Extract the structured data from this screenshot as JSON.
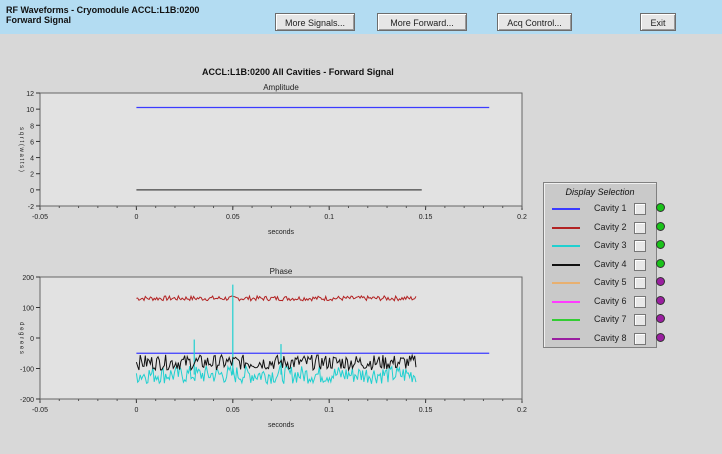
{
  "window": {
    "title_line1": "RF Waveforms - Cryomodule ACCL:L1B:0200",
    "title_line2": "Forward Signal"
  },
  "toolbar": {
    "more_signals": "More Signals...",
    "more_forward": "More Forward...",
    "acq_control": "Acq Control...",
    "exit": "Exit"
  },
  "main_title": "ACCL:L1B:0200 All Cavities - Forward Signal",
  "display_selection": {
    "title": "Display Selection",
    "items": [
      {
        "label": "Cavity 1",
        "color": "#3b3bff",
        "led": "#19c219"
      },
      {
        "label": "Cavity 2",
        "color": "#b22222",
        "led": "#19c219"
      },
      {
        "label": "Cavity 3",
        "color": "#20d0d0",
        "led": "#19c219"
      },
      {
        "label": "Cavity 4",
        "color": "#111111",
        "led": "#19c219"
      },
      {
        "label": "Cavity 5",
        "color": "#e8b070",
        "led": "#9a1fa0"
      },
      {
        "label": "Cavity 6",
        "color": "#ff3cff",
        "led": "#9a1fa0"
      },
      {
        "label": "Cavity 7",
        "color": "#33cc33",
        "led": "#9a1fa0"
      },
      {
        "label": "Cavity 8",
        "color": "#9a1fa0",
        "led": "#9a1fa0"
      }
    ]
  },
  "chart_data": [
    {
      "type": "line",
      "title": "Amplitude",
      "xlabel": "seconds",
      "ylabel": "s q r t ( w a t t s )",
      "xlim": [
        -0.05,
        0.2
      ],
      "ylim": [
        -2,
        12
      ],
      "xticks": [
        "-0.05",
        "0",
        "0.05",
        "0.1",
        "0.15",
        "0.2"
      ],
      "yticks": [
        "-2",
        "0",
        "2",
        "4",
        "6",
        "8",
        "10",
        "12"
      ],
      "series": [
        {
          "name": "Cavity 1",
          "color": "#3b3bff",
          "x": [
            0,
            0.183
          ],
          "y": [
            10.2,
            10.2
          ]
        },
        {
          "name": "Cavity 4",
          "color": "#444444",
          "x": [
            0,
            0.148
          ],
          "y": [
            0,
            0
          ]
        }
      ]
    },
    {
      "type": "line",
      "title": "Phase",
      "xlabel": "seconds",
      "ylabel": "d e g r e e s",
      "xlim": [
        -0.05,
        0.2
      ],
      "ylim": [
        -200,
        200
      ],
      "xticks": [
        "-0.05",
        "0",
        "0.05",
        "0.1",
        "0.15",
        "0.2"
      ],
      "yticks": [
        "-200",
        "-100",
        "0",
        "100",
        "200"
      ],
      "series": [
        {
          "name": "Cavity 1",
          "color": "#3b3bff",
          "x": [
            0,
            0.183
          ],
          "y": [
            -50,
            -50
          ]
        },
        {
          "name": "Cavity 2",
          "color": "#b22222",
          "x_range": [
            0,
            0.145
          ],
          "center": 130,
          "spread": 8
        },
        {
          "name": "Cavity 3",
          "color": "#20d0d0",
          "x_range": [
            0,
            0.145
          ],
          "center": -120,
          "spread": 30,
          "spikes": [
            [
              0.05,
              175
            ],
            [
              0.03,
              -5
            ],
            [
              0.075,
              -20
            ]
          ]
        },
        {
          "name": "Cavity 4",
          "color": "#111111",
          "x_range": [
            0,
            0.145
          ],
          "center": -80,
          "spread": 25
        }
      ]
    }
  ]
}
